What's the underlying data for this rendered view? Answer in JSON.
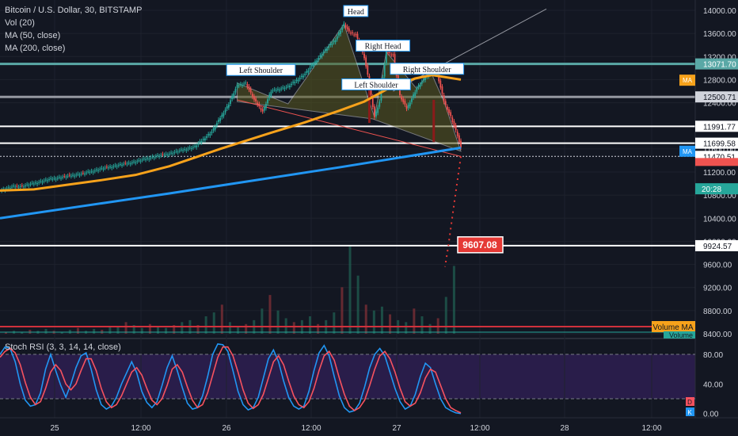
{
  "legend": {
    "symbol": "Bitcoin / U.S. Dollar, 30, BITSTAMP",
    "vol": "Vol (20)",
    "ma50": "MA (50, close)",
    "ma200": "MA (200, close)"
  },
  "stoch_legend": "Stoch RSI (3, 3, 14, 14, close)",
  "chart_data": [
    {
      "type": "candlestick",
      "title": "Bitcoin / U.S. Dollar, 30, BITSTAMP",
      "x_ticks": [
        "25",
        "12:00",
        "26",
        "12:00",
        "27",
        "12:00",
        "28",
        "12:00"
      ],
      "y_ticks": [
        8400,
        8800,
        9200,
        9600,
        10000,
        10400,
        10800,
        11200,
        11600,
        12000,
        12400,
        12800,
        13200,
        13600,
        14000
      ],
      "ylim": [
        8400,
        14050
      ],
      "price_path": [
        [
          0,
          10880
        ],
        [
          8,
          10950
        ],
        [
          14,
          10960
        ],
        [
          22,
          11020
        ],
        [
          30,
          11080
        ],
        [
          40,
          11130
        ],
        [
          50,
          11180
        ],
        [
          60,
          11260
        ],
        [
          70,
          11320
        ],
        [
          80,
          11380
        ],
        [
          90,
          11460
        ],
        [
          100,
          11520
        ],
        [
          115,
          11640
        ],
        [
          125,
          11900
        ],
        [
          135,
          12380
        ],
        [
          140,
          12700
        ],
        [
          145,
          12740
        ],
        [
          150,
          12450
        ],
        [
          155,
          12250
        ],
        [
          160,
          12600
        ],
        [
          170,
          12680
        ],
        [
          180,
          12900
        ],
        [
          190,
          13250
        ],
        [
          198,
          13500
        ],
        [
          203,
          13760
        ],
        [
          206,
          13620
        ],
        [
          210,
          13580
        ],
        [
          215,
          13180
        ],
        [
          218,
          12720
        ],
        [
          221,
          12150
        ],
        [
          224,
          12420
        ],
        [
          228,
          13280
        ],
        [
          232,
          13230
        ],
        [
          236,
          12520
        ],
        [
          240,
          12300
        ],
        [
          246,
          12650
        ],
        [
          250,
          12800
        ],
        [
          254,
          12950
        ],
        [
          258,
          12900
        ],
        [
          262,
          12420
        ],
        [
          266,
          12160
        ],
        [
          270,
          11830
        ],
        [
          272,
          11610
        ]
      ],
      "ma50_path": [
        [
          0,
          10880
        ],
        [
          20,
          10900
        ],
        [
          40,
          10980
        ],
        [
          60,
          11060
        ],
        [
          80,
          11150
        ],
        [
          100,
          11300
        ],
        [
          130,
          11600
        ],
        [
          160,
          11880
        ],
        [
          180,
          12060
        ],
        [
          200,
          12260
        ],
        [
          215,
          12420
        ],
        [
          230,
          12660
        ],
        [
          245,
          12820
        ],
        [
          255,
          12880
        ],
        [
          272,
          12800
        ]
      ],
      "ma200_path": [
        [
          0,
          10400
        ],
        [
          100,
          10830
        ],
        [
          200,
          11280
        ],
        [
          272,
          11620
        ]
      ],
      "horizontal_levels": [
        {
          "price": 13071.7,
          "label": "13071.70",
          "style": "teal"
        },
        {
          "price": 12500.71,
          "label": "12500.71",
          "style": "gray"
        },
        {
          "price": 11991.77,
          "label": "11991.77",
          "style": "white"
        },
        {
          "price": 11699.58,
          "label": "11699.58",
          "style": "white"
        },
        {
          "price": 11470.51,
          "label": "11470.51",
          "style": "dotted"
        },
        {
          "price": 9924.57,
          "label": "9924.57",
          "style": "white"
        }
      ],
      "patterns": [
        {
          "label": "Left Shoulder",
          "x": 154,
          "price": 12940
        },
        {
          "label": "Head",
          "x": 210,
          "price": 13960
        },
        {
          "label": "Right Head",
          "x": 226,
          "price": 13360
        },
        {
          "label": "Left Shoulder",
          "x": 222,
          "price": 12690
        },
        {
          "label": "Right Shoulder",
          "x": 252,
          "price": 12960
        }
      ],
      "target_label": "9607.08",
      "ma_tags": [
        {
          "label": "MA",
          "price": 12790,
          "color": "#f7a21b"
        },
        {
          "label": "MA",
          "price": 11560,
          "color": "#2196f3"
        }
      ],
      "timer_label": "20:28",
      "volume": {
        "label": "Volume MA",
        "label2": "Volume",
        "bars": [
          2,
          3,
          2,
          4,
          3,
          5,
          3,
          2,
          4,
          6,
          3,
          5,
          4,
          7,
          8,
          12,
          9,
          6,
          10,
          8,
          6,
          9,
          12,
          14,
          9,
          18,
          22,
          30,
          12,
          8,
          10,
          14,
          26,
          40,
          24,
          16,
          12,
          14,
          18,
          10,
          14,
          22,
          48,
          90,
          60,
          30,
          24,
          28,
          20,
          14,
          12,
          26,
          18,
          10,
          16,
          38,
          70
        ]
      }
    },
    {
      "type": "line",
      "title": "Stoch RSI (3, 3, 14, 14, close)",
      "y_ticks": [
        0,
        40,
        80
      ],
      "ylim": [
        0,
        95
      ],
      "bands": [
        20,
        80
      ],
      "series": [
        {
          "name": "K",
          "color": "#2196f3",
          "values": [
            80,
            90,
            88,
            70,
            40,
            18,
            10,
            12,
            28,
            60,
            80,
            58,
            38,
            22,
            40,
            62,
            78,
            82,
            60,
            32,
            12,
            6,
            10,
            22,
            40,
            55,
            70,
            55,
            30,
            15,
            8,
            16,
            38,
            62,
            78,
            58,
            35,
            14,
            6,
            8,
            24,
            50,
            80,
            94,
            93,
            84,
            58,
            30,
            12,
            5,
            8,
            22,
            48,
            74,
            86,
            70,
            44,
            22,
            10,
            6,
            10,
            30,
            58,
            82,
            92,
            78,
            50,
            24,
            8,
            2,
            4,
            14,
            36,
            62,
            80,
            88,
            78,
            56,
            34,
            16,
            6,
            10,
            26,
            50,
            68,
            62,
            40,
            20,
            8,
            4,
            1,
            0
          ]
        },
        {
          "name": "D",
          "color": "#f7525f",
          "values": [
            76,
            84,
            88,
            82,
            66,
            42,
            22,
            12,
            16,
            34,
            56,
            66,
            58,
            40,
            32,
            40,
            58,
            74,
            74,
            58,
            34,
            16,
            8,
            12,
            24,
            40,
            56,
            62,
            52,
            34,
            18,
            12,
            20,
            38,
            60,
            66,
            56,
            36,
            18,
            8,
            12,
            28,
            52,
            76,
            90,
            90,
            78,
            56,
            32,
            14,
            7,
            12,
            26,
            48,
            70,
            78,
            66,
            44,
            24,
            12,
            8,
            16,
            34,
            58,
            78,
            84,
            72,
            48,
            26,
            10,
            4,
            8,
            18,
            38,
            60,
            78,
            84,
            74,
            56,
            34,
            16,
            10,
            14,
            28,
            48,
            60,
            56,
            38,
            20,
            8,
            4,
            1
          ]
        }
      ],
      "k_label": "K",
      "d_label": "D"
    }
  ]
}
